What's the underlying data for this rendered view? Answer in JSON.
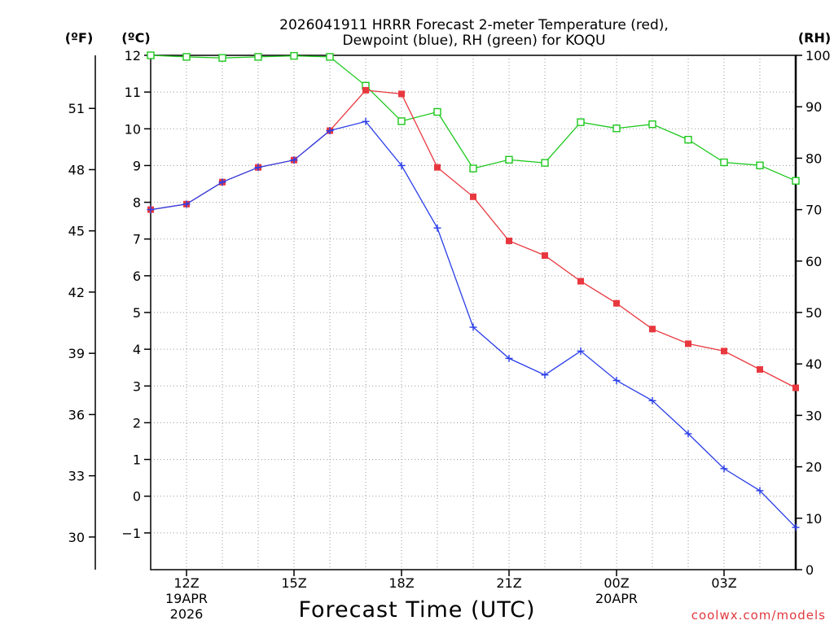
{
  "chart_data": {
    "type": "line",
    "title_line1": "2026041911 HRRR Forecast 2-meter Temperature (red),",
    "title_line2": "Dewpoint (blue), RH (green) for KOQU",
    "xlabel": "Forecast Time (UTC)",
    "credit": "coolwx.com/models",
    "unit_f": "(ºF)",
    "unit_c": "(ºC)",
    "unit_rh": "(RH)",
    "x_hours": [
      11,
      12,
      13,
      14,
      15,
      16,
      17,
      18,
      19,
      20,
      21,
      22,
      23,
      24,
      25,
      26,
      27,
      28,
      29
    ],
    "x_ticks": [
      {
        "hour": 12,
        "label": "12Z",
        "sub1": "19APR",
        "sub2": "2026"
      },
      {
        "hour": 15,
        "label": "15Z",
        "sub1": "",
        "sub2": ""
      },
      {
        "hour": 18,
        "label": "18Z",
        "sub1": "",
        "sub2": ""
      },
      {
        "hour": 21,
        "label": "21Z",
        "sub1": "",
        "sub2": ""
      },
      {
        "hour": 24,
        "label": "00Z",
        "sub1": "20APR",
        "sub2": ""
      },
      {
        "hour": 27,
        "label": "03Z",
        "sub1": "",
        "sub2": ""
      }
    ],
    "xlim": [
      11,
      29
    ],
    "y_celsius": {
      "range": [
        -2,
        12
      ],
      "ticks": [
        "−1",
        "0",
        "1",
        "2",
        "3",
        "4",
        "5",
        "6",
        "7",
        "8",
        "9",
        "10",
        "11",
        "12"
      ]
    },
    "y_fahrenheit": {
      "ticks": [
        "30",
        "33",
        "36",
        "39",
        "42",
        "45",
        "48",
        "51"
      ]
    },
    "y_rh": {
      "range": [
        0,
        100
      ],
      "ticks": [
        "0",
        "10",
        "20",
        "30",
        "40",
        "50",
        "60",
        "70",
        "80",
        "90",
        "100"
      ]
    },
    "series": [
      {
        "name": "Temperature",
        "axis": "celsius",
        "color": "#e8383f",
        "marker": "square-filled",
        "values": [
          7.8,
          7.95,
          8.55,
          8.95,
          9.15,
          9.95,
          11.05,
          10.95,
          8.95,
          8.15,
          6.95,
          6.55,
          5.85,
          5.25,
          4.55,
          4.15,
          3.95,
          3.45,
          2.95
        ]
      },
      {
        "name": "Dewpoint",
        "axis": "celsius",
        "color": "#2a3ee8",
        "marker": "plus",
        "values": [
          7.8,
          7.95,
          8.55,
          8.95,
          9.15,
          9.95,
          10.2,
          9.0,
          7.3,
          4.6,
          3.75,
          3.3,
          3.95,
          3.15,
          2.6,
          1.7,
          0.75,
          0.15,
          -0.85
        ]
      },
      {
        "name": "RH",
        "axis": "rh",
        "color": "#1ec81e",
        "marker": "square-open",
        "values": [
          100,
          99.7,
          99.5,
          99.7,
          99.9,
          99.7,
          94.1,
          87.2,
          89.0,
          78.0,
          79.7,
          79.1,
          87.0,
          85.8,
          86.6,
          83.6,
          79.2,
          78.6,
          75.6
        ]
      }
    ]
  }
}
